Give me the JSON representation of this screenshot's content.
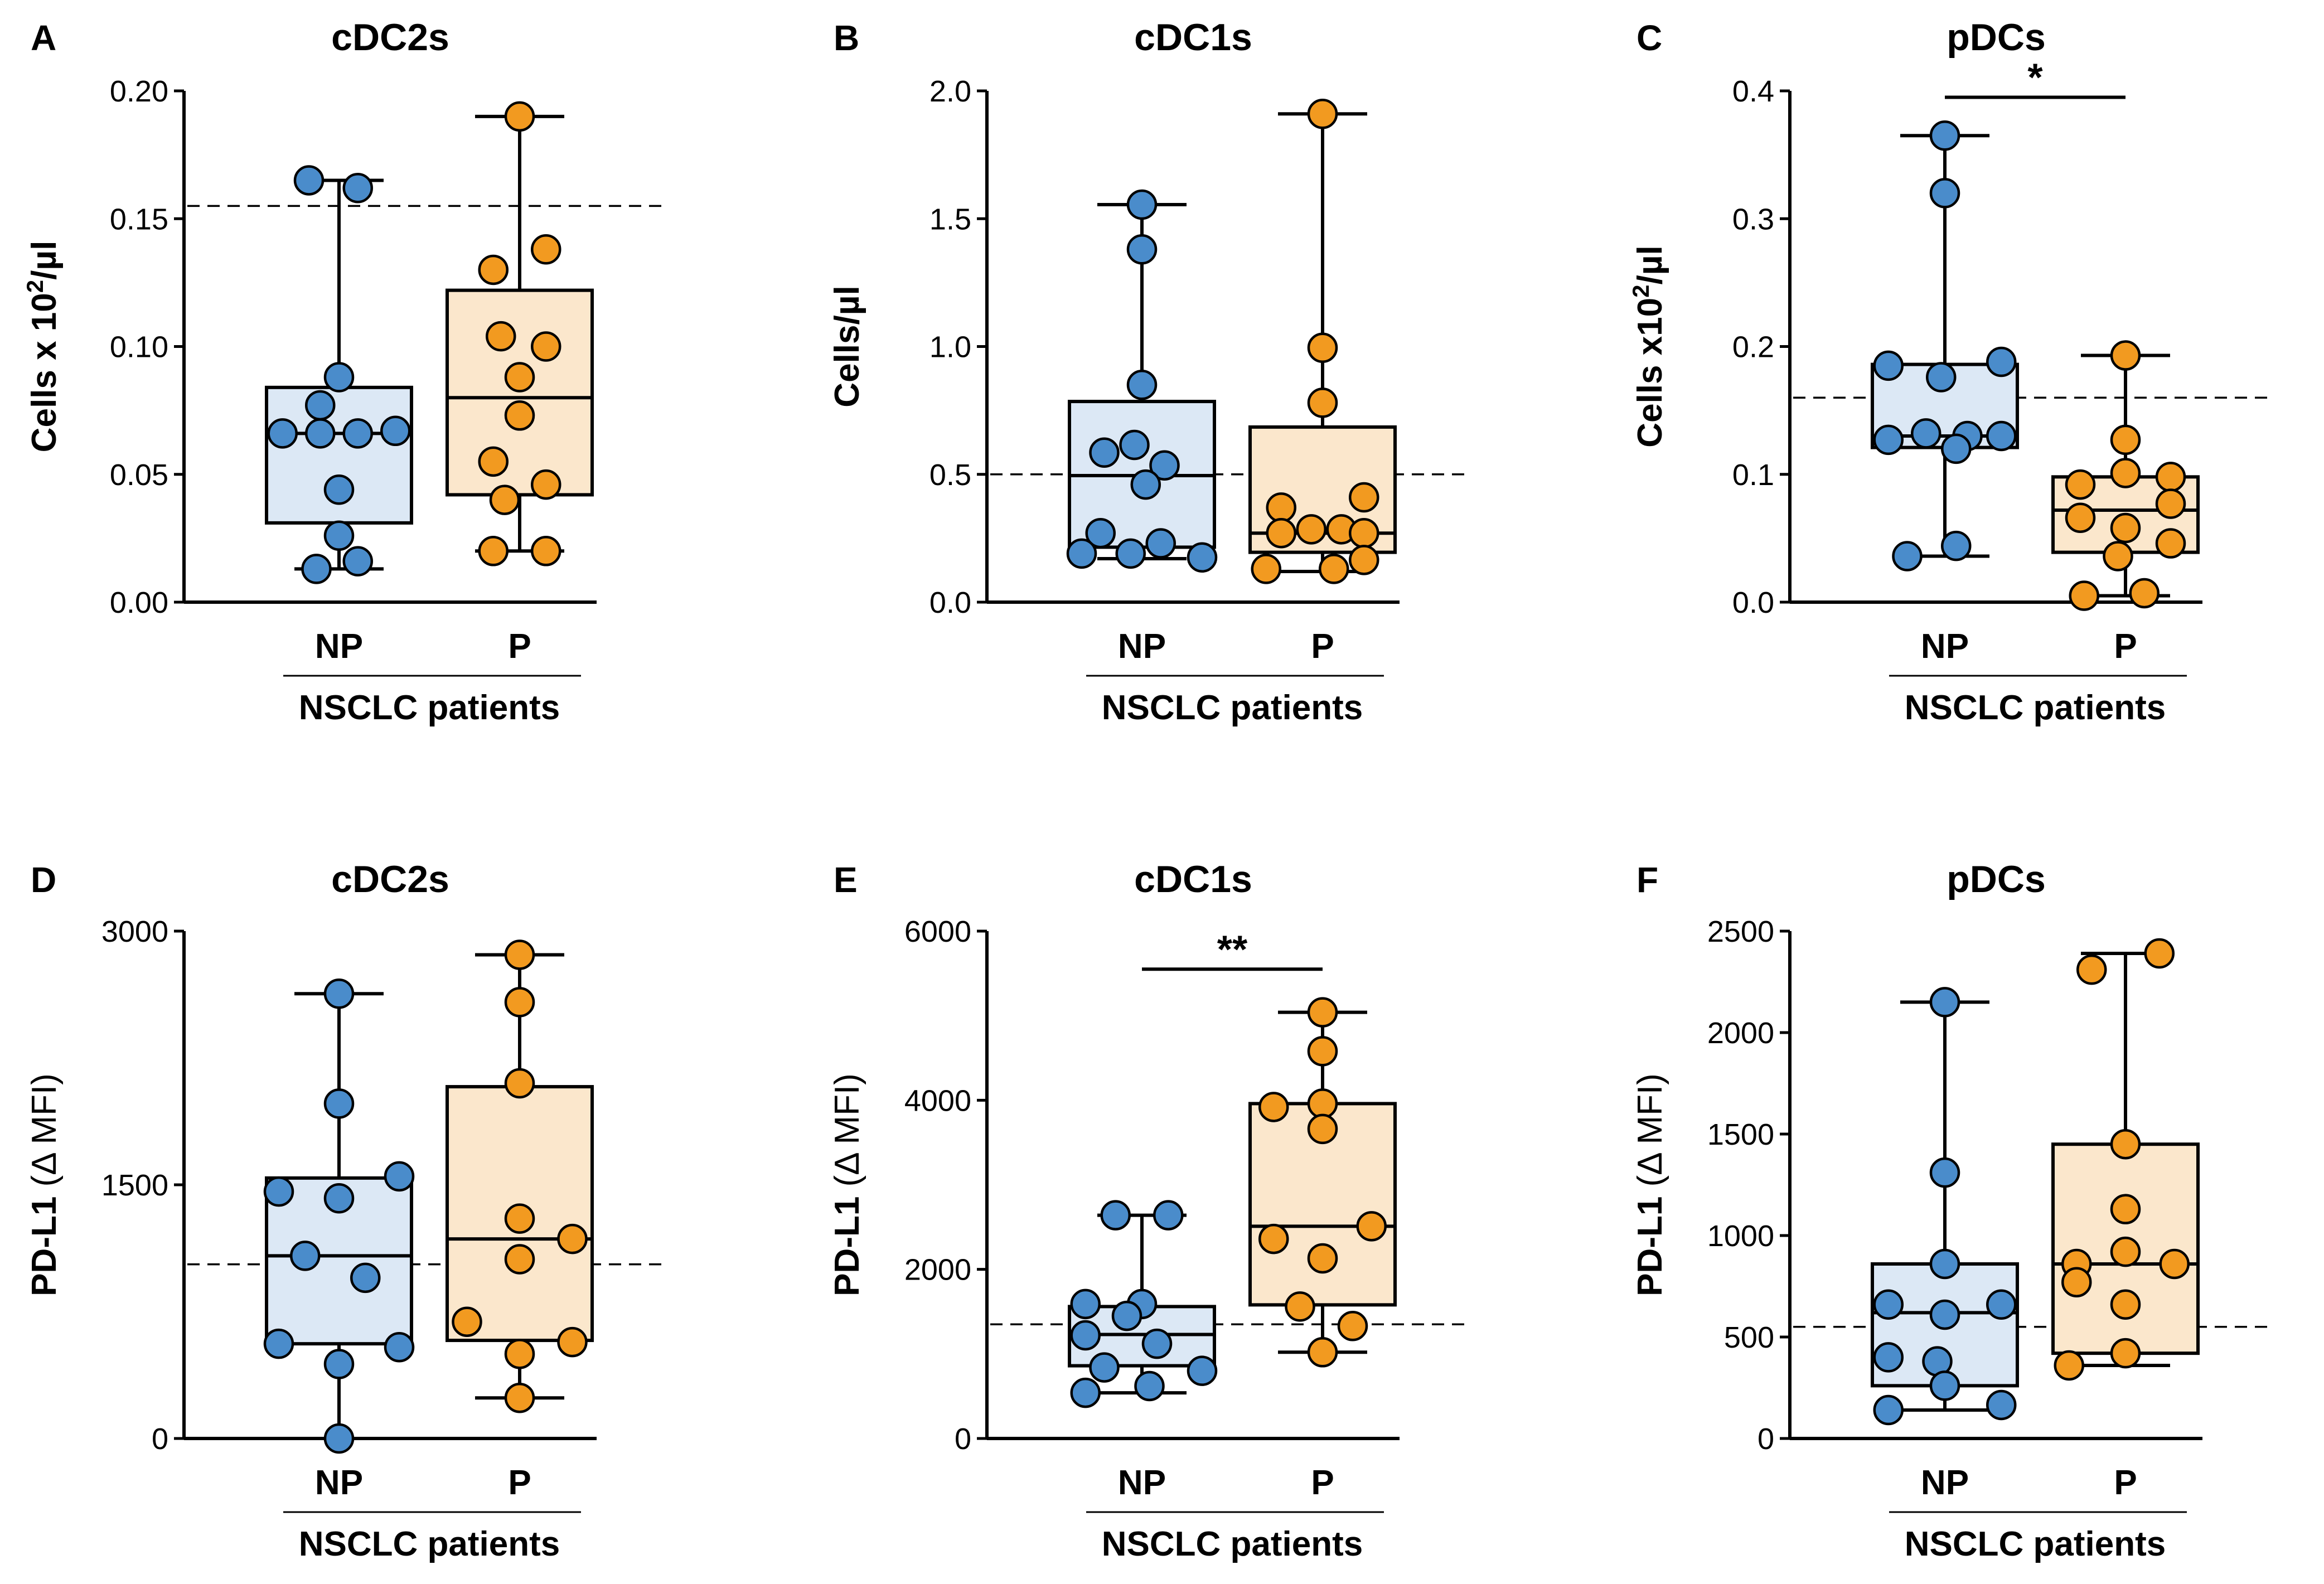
{
  "colors": {
    "np_point": "#4a8ccb",
    "p_point": "#f29a20",
    "np_box": "#dce8f5",
    "p_box": "#fbe7cc",
    "stroke": "#000000"
  },
  "chart_data": [
    {
      "id": "A",
      "type": "box",
      "letter": "A",
      "title": "cDC2s",
      "ylabel_main": "Cells x 10",
      "ylabel_sup": "2",
      "ylabel_tail": "/µl",
      "ylabel_paren": "",
      "ylim": [
        0,
        0.2
      ],
      "yticks": [
        "0.00",
        "0.05",
        "0.10",
        "0.15",
        "0.20"
      ],
      "categories": [
        "NP",
        "P"
      ],
      "group_label": "NSCLC patients",
      "reference_line": 0.155,
      "significance": null,
      "series": [
        {
          "name": "NP",
          "box": {
            "q1": 0.031,
            "median": 0.066,
            "q3": 0.084,
            "whisker_low": 0.013,
            "whisker_high": 0.165
          },
          "points": [
            [
              -0.4,
              0.165
            ],
            [
              0.25,
              0.162
            ],
            [
              0.0,
              0.088
            ],
            [
              -0.25,
              0.077
            ],
            [
              -0.75,
              0.066
            ],
            [
              -0.25,
              0.066
            ],
            [
              0.25,
              0.066
            ],
            [
              0.75,
              0.067
            ],
            [
              0.0,
              0.044
            ],
            [
              0.0,
              0.026
            ],
            [
              -0.3,
              0.013
            ],
            [
              0.25,
              0.016
            ]
          ]
        },
        {
          "name": "P",
          "box": {
            "q1": 0.042,
            "median": 0.08,
            "q3": 0.122,
            "whisker_low": 0.02,
            "whisker_high": 0.19
          },
          "points": [
            [
              0.0,
              0.19
            ],
            [
              0.35,
              0.138
            ],
            [
              -0.35,
              0.13
            ],
            [
              -0.25,
              0.104
            ],
            [
              0.35,
              0.1
            ],
            [
              0.0,
              0.088
            ],
            [
              0.0,
              0.073
            ],
            [
              -0.35,
              0.055
            ],
            [
              0.35,
              0.046
            ],
            [
              -0.2,
              0.04
            ],
            [
              -0.35,
              0.02
            ],
            [
              0.35,
              0.02
            ]
          ]
        }
      ]
    },
    {
      "id": "B",
      "type": "box",
      "letter": "B",
      "title": "cDC1s",
      "ylabel_main": "Cells/µl",
      "ylabel_sup": "",
      "ylabel_tail": "",
      "ylabel_paren": "",
      "ylim": [
        0,
        2.0
      ],
      "yticks": [
        "0.0",
        "0.5",
        "1.0",
        "1.5",
        "2.0"
      ],
      "categories": [
        "NP",
        "P"
      ],
      "group_label": "NSCLC patients",
      "reference_line": 0.5,
      "significance": null,
      "series": [
        {
          "name": "NP",
          "box": {
            "q1": 0.215,
            "median": 0.495,
            "q3": 0.785,
            "whisker_low": 0.17,
            "whisker_high": 1.555
          },
          "points": [
            [
              0.0,
              1.555
            ],
            [
              0.0,
              1.38
            ],
            [
              0.0,
              0.85
            ],
            [
              -0.5,
              0.585
            ],
            [
              -0.1,
              0.615
            ],
            [
              0.3,
              0.535
            ],
            [
              0.05,
              0.46
            ],
            [
              -0.55,
              0.27
            ],
            [
              0.25,
              0.23
            ],
            [
              -0.8,
              0.19
            ],
            [
              -0.15,
              0.19
            ],
            [
              0.8,
              0.175
            ]
          ]
        },
        {
          "name": "P",
          "box": {
            "q1": 0.195,
            "median": 0.27,
            "q3": 0.685,
            "whisker_low": 0.12,
            "whisker_high": 1.91
          },
          "points": [
            [
              0.0,
              1.91
            ],
            [
              0.0,
              0.995
            ],
            [
              0.0,
              0.78
            ],
            [
              0.55,
              0.41
            ],
            [
              -0.55,
              0.37
            ],
            [
              -0.55,
              0.27
            ],
            [
              -0.15,
              0.285
            ],
            [
              0.25,
              0.285
            ],
            [
              0.55,
              0.27
            ],
            [
              0.55,
              0.165
            ],
            [
              -0.75,
              0.13
            ],
            [
              0.15,
              0.13
            ]
          ]
        }
      ]
    },
    {
      "id": "C",
      "type": "box",
      "letter": "C",
      "title": "pDCs",
      "ylabel_main": "Cells x10",
      "ylabel_sup": "2",
      "ylabel_tail": "/µl",
      "ylabel_paren": "",
      "ylim": [
        0,
        0.4
      ],
      "yticks": [
        "0.0",
        "0.1",
        "0.2",
        "0.3",
        "0.4"
      ],
      "categories": [
        "NP",
        "P"
      ],
      "group_label": "NSCLC patients",
      "reference_line": 0.16,
      "significance": {
        "label": "*",
        "y": 0.395
      },
      "series": [
        {
          "name": "NP",
          "box": {
            "q1": 0.121,
            "median": 0.13,
            "q3": 0.186,
            "whisker_low": 0.036,
            "whisker_high": 0.365
          },
          "points": [
            [
              0.0,
              0.365
            ],
            [
              0.0,
              0.32
            ],
            [
              -0.75,
              0.185
            ],
            [
              0.75,
              0.188
            ],
            [
              -0.05,
              0.176
            ],
            [
              -0.75,
              0.127
            ],
            [
              -0.25,
              0.132
            ],
            [
              0.3,
              0.13
            ],
            [
              0.75,
              0.13
            ],
            [
              0.15,
              0.12
            ],
            [
              -0.5,
              0.036
            ],
            [
              0.15,
              0.044
            ]
          ]
        },
        {
          "name": "P",
          "box": {
            "q1": 0.039,
            "median": 0.072,
            "q3": 0.098,
            "whisker_low": 0.005,
            "whisker_high": 0.193
          },
          "points": [
            [
              0.0,
              0.193
            ],
            [
              0.0,
              0.127
            ],
            [
              -0.6,
              0.092
            ],
            [
              0.0,
              0.101
            ],
            [
              0.6,
              0.098
            ],
            [
              0.6,
              0.077
            ],
            [
              -0.6,
              0.066
            ],
            [
              0.6,
              0.046
            ],
            [
              0.0,
              0.058
            ],
            [
              -0.1,
              0.036
            ],
            [
              -0.55,
              0.005
            ],
            [
              0.25,
              0.007
            ]
          ]
        }
      ]
    },
    {
      "id": "D",
      "type": "box",
      "letter": "D",
      "title": "cDC2s",
      "ylabel_main": "PD-L1",
      "ylabel_sup": "",
      "ylabel_tail": "",
      "ylabel_paren": " (Δ MFI)",
      "ylim": [
        0,
        3000
      ],
      "yticks": [
        "0",
        "1500",
        "3000"
      ],
      "categories": [
        "NP",
        "P"
      ],
      "group_label": "NSCLC patients",
      "reference_line": 1030,
      "significance": null,
      "series": [
        {
          "name": "NP",
          "box": {
            "q1": 560,
            "median": 1080,
            "q3": 1540,
            "whisker_low": 0,
            "whisker_high": 2630
          },
          "points": [
            [
              0.0,
              2630
            ],
            [
              0.0,
              1980
            ],
            [
              0.8,
              1550
            ],
            [
              -0.8,
              1460
            ],
            [
              0.0,
              1420
            ],
            [
              -0.45,
              1080
            ],
            [
              0.35,
              950
            ],
            [
              -0.8,
              560
            ],
            [
              0.8,
              540
            ],
            [
              0.0,
              440
            ],
            [
              0.0,
              0
            ]
          ]
        },
        {
          "name": "P",
          "box": {
            "q1": 580,
            "median": 1180,
            "q3": 2080,
            "whisker_low": 240,
            "whisker_high": 2860
          },
          "points": [
            [
              0.0,
              2860
            ],
            [
              0.0,
              2580
            ],
            [
              0.0,
              2100
            ],
            [
              0.0,
              1300
            ],
            [
              0.7,
              1180
            ],
            [
              0.0,
              1060
            ],
            [
              -0.7,
              690
            ],
            [
              0.7,
              570
            ],
            [
              0.0,
              500
            ],
            [
              0.0,
              240
            ]
          ]
        }
      ]
    },
    {
      "id": "E",
      "type": "box",
      "letter": "E",
      "title": "cDC1s",
      "ylabel_main": "PD-L1",
      "ylabel_sup": "",
      "ylabel_tail": "",
      "ylabel_paren": " (Δ MFI)",
      "ylim": [
        0,
        6000
      ],
      "yticks": [
        "0",
        "2000",
        "4000",
        "6000"
      ],
      "categories": [
        "NP",
        "P"
      ],
      "group_label": "NSCLC patients",
      "reference_line": 1350,
      "significance": {
        "label": "**",
        "y": 5550
      },
      "series": [
        {
          "name": "NP",
          "box": {
            "q1": 860,
            "median": 1230,
            "q3": 1560,
            "whisker_low": 540,
            "whisker_high": 2640
          },
          "points": [
            [
              -0.35,
              2640
            ],
            [
              0.35,
              2640
            ],
            [
              -0.75,
              1590
            ],
            [
              0.0,
              1590
            ],
            [
              -0.2,
              1450
            ],
            [
              -0.75,
              1220
            ],
            [
              0.2,
              1120
            ],
            [
              -0.5,
              840
            ],
            [
              0.8,
              800
            ],
            [
              -0.75,
              540
            ],
            [
              0.1,
              620
            ]
          ]
        },
        {
          "name": "P",
          "box": {
            "q1": 1580,
            "median": 2510,
            "q3": 3960,
            "whisker_low": 1020,
            "whisker_high": 5040
          },
          "points": [
            [
              0.0,
              5040
            ],
            [
              0.0,
              4580
            ],
            [
              -0.65,
              3920
            ],
            [
              0.0,
              3960
            ],
            [
              0.0,
              3660
            ],
            [
              0.65,
              2510
            ],
            [
              -0.65,
              2360
            ],
            [
              0.0,
              2130
            ],
            [
              -0.3,
              1560
            ],
            [
              0.4,
              1330
            ],
            [
              0.0,
              1020
            ]
          ]
        }
      ]
    },
    {
      "id": "F",
      "type": "box",
      "letter": "F",
      "title": "pDCs",
      "ylabel_main": "PD-L1",
      "ylabel_sup": "",
      "ylabel_tail": "",
      "ylabel_paren": " (Δ MFI)",
      "ylim": [
        0,
        2500
      ],
      "yticks": [
        "0",
        "500",
        "1000",
        "1500",
        "2000",
        "2500"
      ],
      "categories": [
        "NP",
        "P"
      ],
      "group_label": "NSCLC patients",
      "reference_line": 550,
      "significance": null,
      "series": [
        {
          "name": "NP",
          "box": {
            "q1": 260,
            "median": 620,
            "q3": 860,
            "whisker_low": 140,
            "whisker_high": 2150
          },
          "points": [
            [
              0.0,
              2150
            ],
            [
              0.0,
              1310
            ],
            [
              0.0,
              860
            ],
            [
              -0.75,
              660
            ],
            [
              0.75,
              660
            ],
            [
              0.0,
              610
            ],
            [
              -0.75,
              400
            ],
            [
              -0.1,
              380
            ],
            [
              0.0,
              260
            ],
            [
              -0.75,
              140
            ],
            [
              0.75,
              165
            ]
          ]
        },
        {
          "name": "P",
          "box": {
            "q1": 420,
            "median": 860,
            "q3": 1450,
            "whisker_low": 360,
            "whisker_high": 2390
          },
          "points": [
            [
              0.45,
              2390
            ],
            [
              -0.45,
              2310
            ],
            [
              0.0,
              1450
            ],
            [
              0.0,
              1130
            ],
            [
              -0.65,
              860
            ],
            [
              0.0,
              920
            ],
            [
              0.65,
              860
            ],
            [
              -0.65,
              770
            ],
            [
              0.0,
              660
            ],
            [
              0.0,
              420
            ],
            [
              -0.75,
              360
            ]
          ]
        }
      ]
    }
  ]
}
